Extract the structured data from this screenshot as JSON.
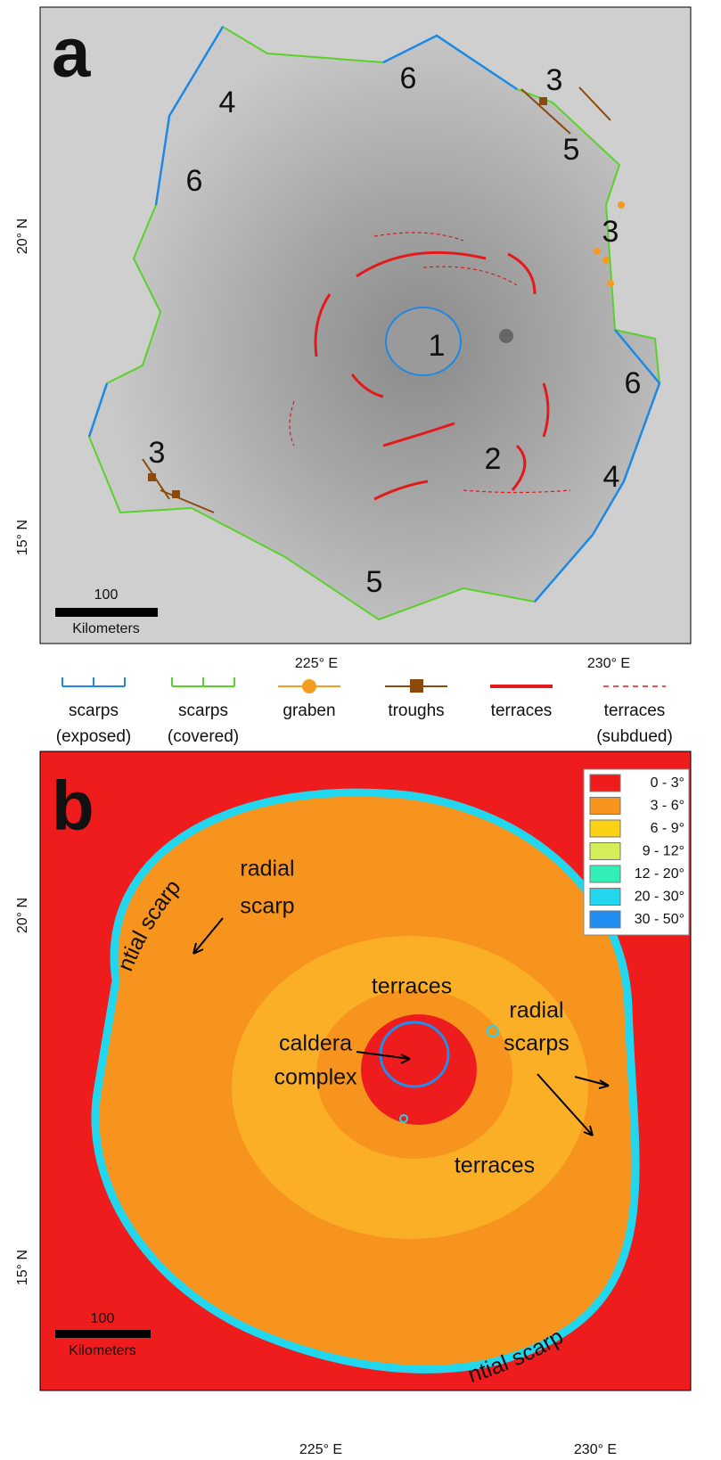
{
  "panel_a": {
    "label": "a",
    "lat_labels": [
      "20° N",
      "15° N"
    ],
    "lon_labels": [
      "225° E",
      "230° E"
    ],
    "scale_bar": {
      "value": "100",
      "unit": "Kilometers"
    },
    "unit_labels": [
      "1",
      "2",
      "3",
      "3",
      "3",
      "4",
      "4",
      "5",
      "5",
      "6",
      "6",
      "6"
    ]
  },
  "legend_a": [
    {
      "lines": [
        "scarps",
        "(exposed)"
      ]
    },
    {
      "lines": [
        "scarps",
        "(covered)"
      ]
    },
    {
      "lines": [
        "graben"
      ]
    },
    {
      "lines": [
        "troughs"
      ]
    },
    {
      "lines": [
        "terraces"
      ]
    },
    {
      "lines": [
        "terraces",
        "(subdued)"
      ]
    }
  ],
  "panel_b": {
    "label": "b",
    "lat_labels": [
      "20° N",
      "15° N"
    ],
    "lon_labels": [
      "225° E",
      "230° E"
    ],
    "scale_bar": {
      "value": "100",
      "unit": "Kilometers"
    },
    "annotations": [
      "circumferential scarp",
      "radial",
      "scarp",
      "terraces",
      "radial",
      "scarps",
      "caldera",
      "complex",
      "terraces",
      "circumferential scarp"
    ],
    "slope_legend": [
      {
        "label": "0 - 3°",
        "color": "#ee1c1c"
      },
      {
        "label": "3 - 6°",
        "color": "#f7941d"
      },
      {
        "label": "6 - 9°",
        "color": "#fbd216"
      },
      {
        "label": "9 - 12°",
        "color": "#d4ee5a"
      },
      {
        "label": "12 - 20°",
        "color": "#33efb7"
      },
      {
        "label": "20 - 30°",
        "color": "#22d6ee"
      },
      {
        "label": "30 - 50°",
        "color": "#1f8ef0"
      }
    ]
  }
}
